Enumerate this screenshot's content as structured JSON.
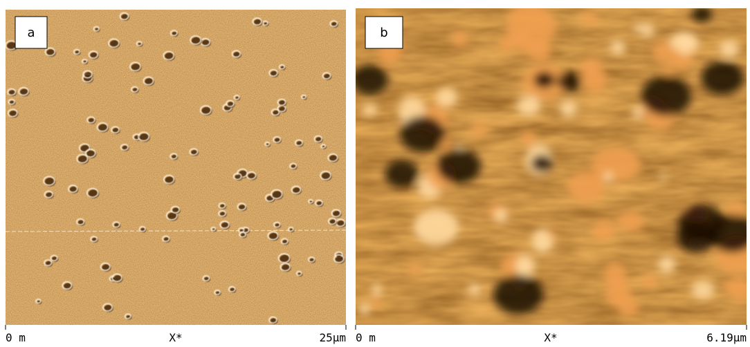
{
  "panels": [
    {
      "label": "a",
      "axis": {
        "start": "0 m",
        "middle": "X*",
        "end": "25µm"
      }
    },
    {
      "label": "b",
      "axis": {
        "start": "0 m",
        "middle": "X*",
        "end": "6.19µm"
      }
    }
  ]
}
